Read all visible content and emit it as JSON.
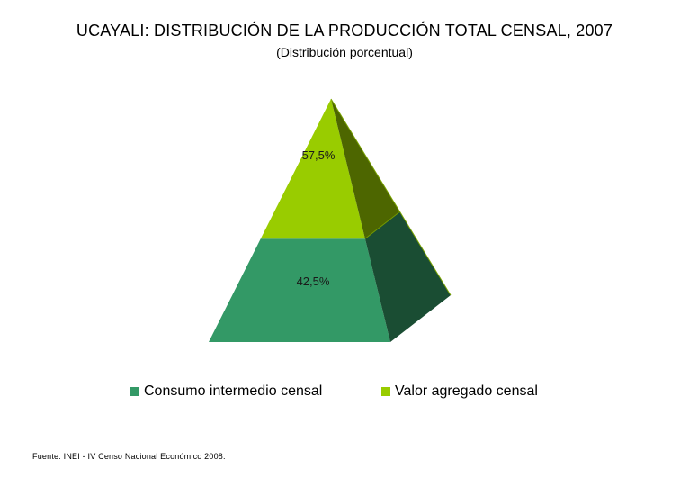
{
  "chart_data": {
    "type": "pyramid",
    "title": "UCAYALI: DISTRIBUCIÓN DE LA PRODUCCIÓN TOTAL CENSAL, 2007",
    "subtitle": "(Distribución porcentual)",
    "categories": [
      "Consumo intermedio censal",
      "Valor agregado censal"
    ],
    "values": [
      42.5,
      57.5
    ],
    "data_labels": [
      "42,5%",
      "57,5%"
    ],
    "colors": {
      "Consumo intermedio censal": "#339966",
      "Valor agregado censal": "#99cc00"
    },
    "legend_placement": "bottom",
    "source": "Fuente: INEI - IV Censo Nacional Económico 2008."
  }
}
